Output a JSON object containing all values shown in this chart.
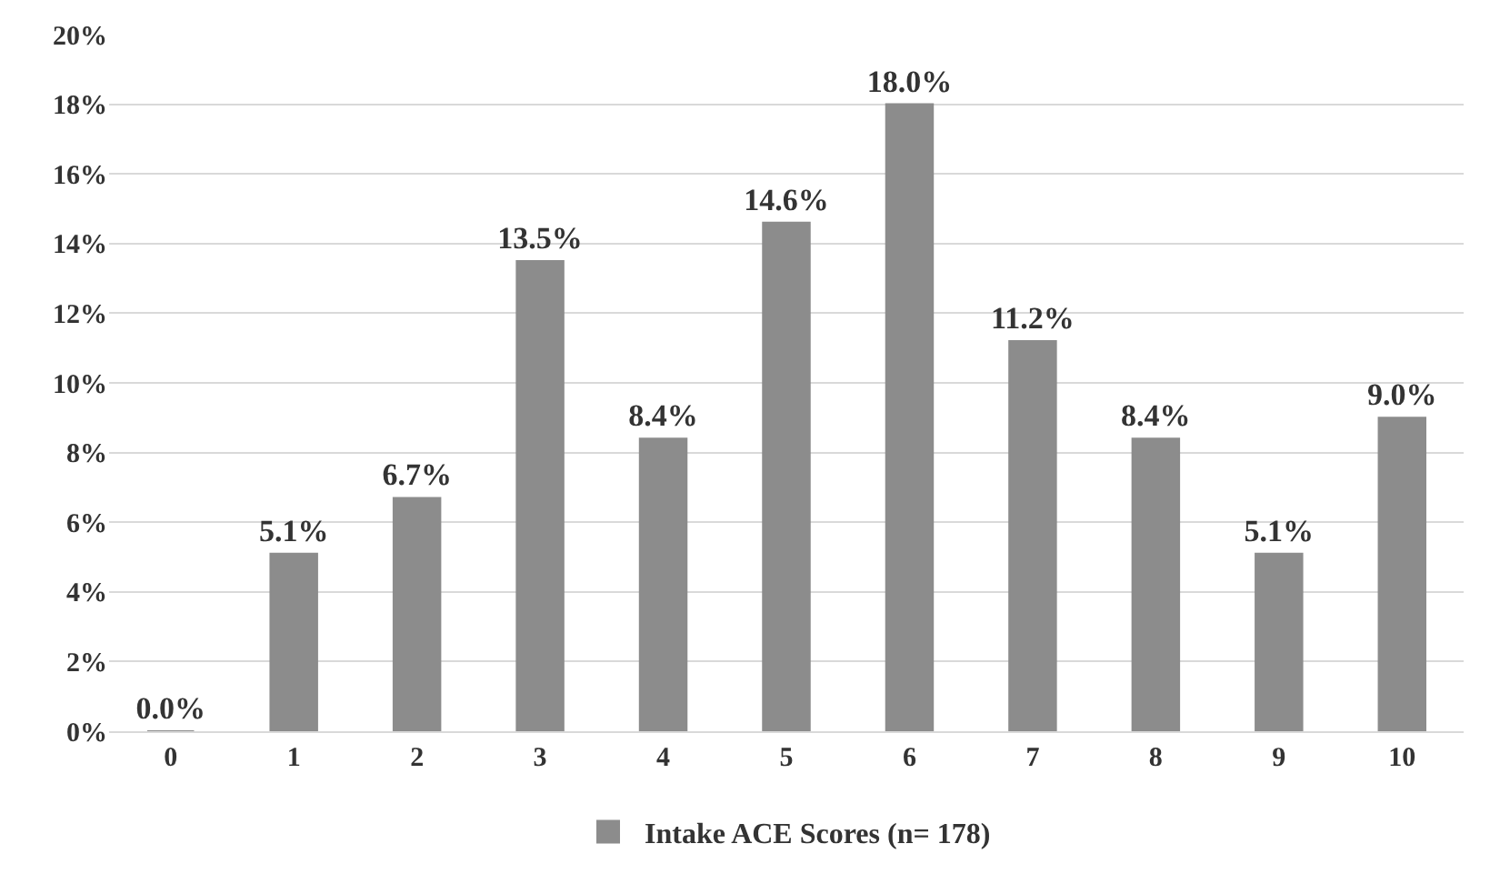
{
  "chart_data": {
    "type": "bar",
    "categories": [
      "0",
      "1",
      "2",
      "3",
      "4",
      "5",
      "6",
      "7",
      "8",
      "9",
      "10"
    ],
    "series": [
      {
        "name": "Intake ACE Scores (n= 178)",
        "color": "#8c8c8c",
        "values": [
          0.0,
          5.1,
          6.7,
          13.5,
          8.4,
          14.6,
          18.0,
          11.2,
          8.4,
          5.1,
          9.0
        ],
        "value_labels": [
          "0.0%",
          "5.1%",
          "6.7%",
          "13.5%",
          "8.4%",
          "14.6%",
          "18.0%",
          "11.2%",
          "8.4%",
          "5.1%",
          "9.0%"
        ]
      }
    ],
    "ylim": [
      0,
      20
    ],
    "yticks": [
      {
        "value": 0,
        "label": "0%"
      },
      {
        "value": 2,
        "label": "2%"
      },
      {
        "value": 4,
        "label": "4%"
      },
      {
        "value": 6,
        "label": "6%"
      },
      {
        "value": 8,
        "label": "8%"
      },
      {
        "value": 10,
        "label": "10%"
      },
      {
        "value": 12,
        "label": "12%"
      },
      {
        "value": 14,
        "label": "14%"
      },
      {
        "value": 16,
        "label": "16%"
      },
      {
        "value": 18,
        "label": "18%"
      },
      {
        "value": 20,
        "label": "20%"
      }
    ],
    "grid": "y",
    "legend": "bottom"
  }
}
